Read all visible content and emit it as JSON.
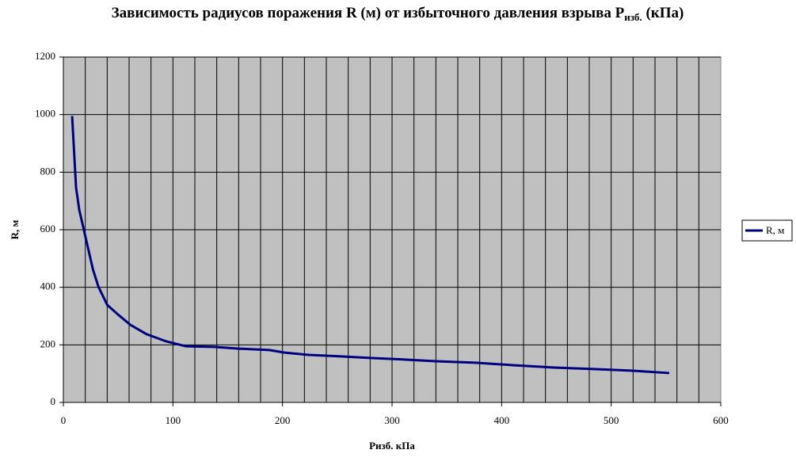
{
  "chart_data": {
    "type": "line",
    "title": {
      "main": "Зависимость радиусов поражения R (м) от избыточного давления взрыва P",
      "sub": "изб.",
      "end": " (кПа)"
    },
    "xlabel": "Ризб. кПа",
    "ylabel": "R, м",
    "x": [
      8,
      11.6,
      14.5,
      20,
      27,
      32,
      40,
      50,
      61,
      76,
      94,
      112,
      137,
      159,
      188,
      202,
      224,
      253,
      282,
      311,
      340,
      376,
      412,
      448,
      484,
      520,
      553
    ],
    "series": [
      {
        "name": "R, м",
        "color": "#000080",
        "values": [
          995,
          746,
          669,
          578,
          462,
          402,
          339,
          305,
          270,
          237,
          212,
          195,
          193,
          187,
          182,
          173,
          165,
          160,
          154,
          149,
          143,
          138,
          129,
          121,
          116,
          110,
          102
        ]
      }
    ],
    "xlim": [
      0,
      600
    ],
    "xticks": [
      0,
      100,
      200,
      300,
      400,
      500,
      600
    ],
    "x_grid_step": 20,
    "ylim": [
      0,
      1200
    ],
    "yticks": [
      0,
      200,
      400,
      600,
      800,
      1000,
      1200
    ],
    "grid": true,
    "plot_background": "#c0c0c0",
    "legend": "right"
  }
}
